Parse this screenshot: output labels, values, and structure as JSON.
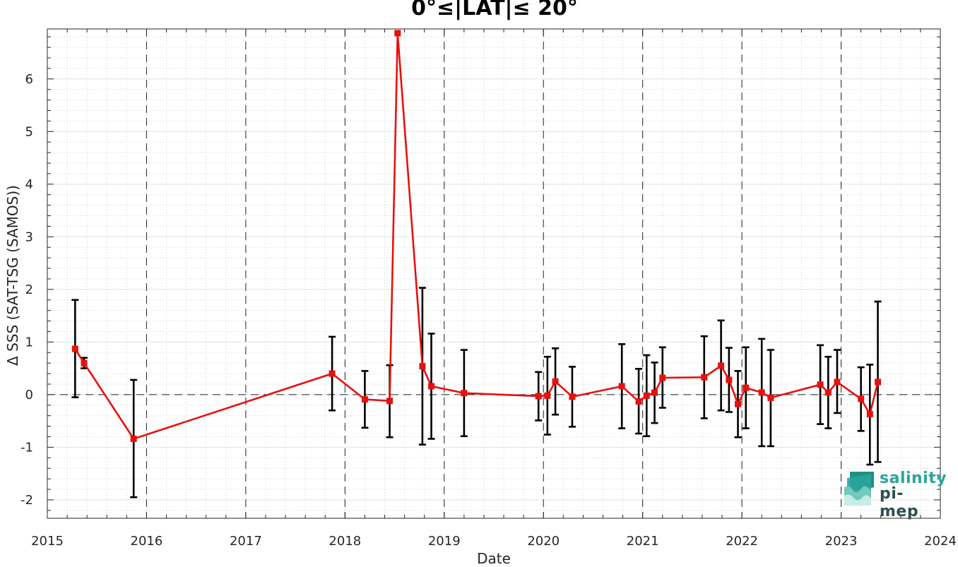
{
  "chart_data": {
    "type": "scatter",
    "title": "0°≤|LAT|≤ 20°",
    "xlabel": "Date",
    "ylabel": "Δ SSS (SAT-TSG (SAMOS))",
    "x_unit": "year",
    "xlim": [
      2015,
      2024
    ],
    "ylim": [
      -2.35,
      6.95
    ],
    "x_ticks": [
      2015,
      2016,
      2017,
      2018,
      2019,
      2020,
      2021,
      2022,
      2023,
      2024
    ],
    "x_tick_labels": [
      "2015",
      "2016",
      "2017",
      "2018",
      "2019",
      "2020",
      "2021",
      "2022",
      "2023",
      "2024"
    ],
    "y_ticks": [
      -2,
      -1,
      0,
      1,
      2,
      3,
      4,
      5,
      6
    ],
    "y_tick_labels": [
      "-2",
      "-1",
      "0",
      "1",
      "2",
      "3",
      "4",
      "5",
      "6"
    ],
    "grid": true,
    "minor_grid": true,
    "reference_line_y": 0,
    "year_dividers": true,
    "series": [
      {
        "color": "#e8100e",
        "marker": "square",
        "errorbar_color": "#000000",
        "points": [
          {
            "x": 2015.28,
            "y": 0.87,
            "lo": -0.05,
            "hi": 1.8
          },
          {
            "x": 2015.37,
            "y": 0.6,
            "lo": 0.5,
            "hi": 0.7
          },
          {
            "x": 2015.87,
            "y": -0.84,
            "lo": -1.95,
            "hi": 0.28
          },
          {
            "x": 2017.87,
            "y": 0.4,
            "lo": -0.3,
            "hi": 1.1
          },
          {
            "x": 2018.2,
            "y": -0.09,
            "lo": -0.63,
            "hi": 0.45
          },
          {
            "x": 2018.45,
            "y": -0.12,
            "lo": -0.81,
            "hi": 0.56
          },
          {
            "x": 2018.53,
            "y": 6.87,
            "lo": 6.87,
            "hi": 6.87
          },
          {
            "x": 2018.78,
            "y": 0.54,
            "lo": -0.95,
            "hi": 2.03
          },
          {
            "x": 2018.87,
            "y": 0.16,
            "lo": -0.84,
            "hi": 1.16
          },
          {
            "x": 2019.2,
            "y": 0.03,
            "lo": -0.79,
            "hi": 0.85
          },
          {
            "x": 2019.95,
            "y": -0.03,
            "lo": -0.49,
            "hi": 0.43
          },
          {
            "x": 2020.04,
            "y": -0.02,
            "lo": -0.76,
            "hi": 0.72
          },
          {
            "x": 2020.12,
            "y": 0.25,
            "lo": -0.38,
            "hi": 0.88
          },
          {
            "x": 2020.29,
            "y": -0.04,
            "lo": -0.61,
            "hi": 0.53
          },
          {
            "x": 2020.79,
            "y": 0.16,
            "lo": -0.64,
            "hi": 0.96
          },
          {
            "x": 2020.96,
            "y": -0.13,
            "lo": -0.74,
            "hi": 0.49
          },
          {
            "x": 2021.04,
            "y": -0.02,
            "lo": -0.79,
            "hi": 0.75
          },
          {
            "x": 2021.12,
            "y": 0.04,
            "lo": -0.54,
            "hi": 0.61
          },
          {
            "x": 2021.2,
            "y": 0.32,
            "lo": -0.25,
            "hi": 0.9
          },
          {
            "x": 2021.62,
            "y": 0.33,
            "lo": -0.45,
            "hi": 1.11
          },
          {
            "x": 2021.79,
            "y": 0.55,
            "lo": -0.3,
            "hi": 1.41
          },
          {
            "x": 2021.87,
            "y": 0.28,
            "lo": -0.33,
            "hi": 0.89
          },
          {
            "x": 2021.96,
            "y": -0.18,
            "lo": -0.81,
            "hi": 0.45
          },
          {
            "x": 2022.04,
            "y": 0.13,
            "lo": -0.64,
            "hi": 0.9
          },
          {
            "x": 2022.2,
            "y": 0.04,
            "lo": -0.98,
            "hi": 1.06
          },
          {
            "x": 2022.29,
            "y": -0.06,
            "lo": -0.98,
            "hi": 0.85
          },
          {
            "x": 2022.79,
            "y": 0.19,
            "lo": -0.56,
            "hi": 0.94
          },
          {
            "x": 2022.87,
            "y": 0.04,
            "lo": -0.64,
            "hi": 0.72
          },
          {
            "x": 2022.96,
            "y": 0.24,
            "lo": -0.35,
            "hi": 0.85
          },
          {
            "x": 2023.2,
            "y": -0.08,
            "lo": -0.69,
            "hi": 0.52
          },
          {
            "x": 2023.29,
            "y": -0.37,
            "lo": -1.33,
            "hi": 0.57
          },
          {
            "x": 2023.37,
            "y": 0.24,
            "lo": -1.28,
            "hi": 1.77
          }
        ]
      }
    ]
  },
  "logo": {
    "line1": "salinity",
    "line2": "pi-mep",
    "color_primary": "#2aa59a",
    "color_secondary": "#2f4f4f"
  }
}
